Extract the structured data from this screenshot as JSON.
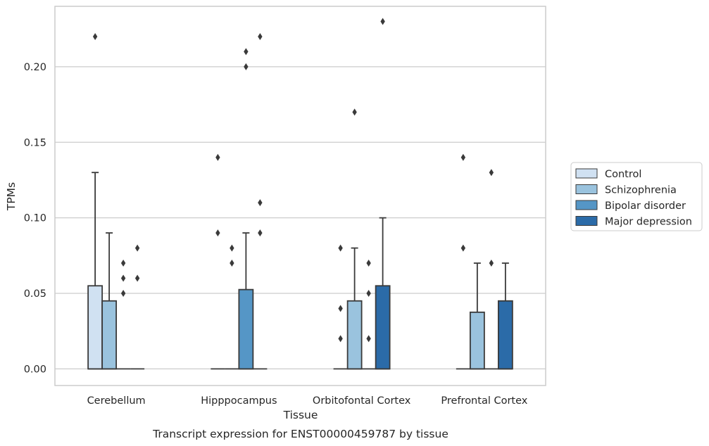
{
  "chart_data": {
    "type": "box",
    "caption": "Transcript expression for ENST00000459787 by tissue",
    "xlabel": "Tissue",
    "ylabel": "TPMs",
    "ylim": [
      -0.011,
      0.24
    ],
    "yticks": [
      0.0,
      0.05,
      0.1,
      0.15,
      0.2
    ],
    "ytick_labels": [
      "0.00",
      "0.05",
      "0.10",
      "0.15",
      "0.20"
    ],
    "grid": "horizontal",
    "legend_position": "right",
    "categories": [
      "Cerebellum",
      "Hipppocampus",
      "Orbitofontal Cortex",
      "Prefrontal Cortex"
    ],
    "series": [
      {
        "name": "Control",
        "color": "#d0e1f2",
        "boxes": [
          {
            "q1": 0.0,
            "median": 0.0,
            "q3": 0.055,
            "whisker_low": 0.0,
            "whisker_high": 0.13,
            "outliers": [
              0.22
            ]
          },
          {
            "q1": 0.0,
            "median": 0.0,
            "q3": 0.0,
            "whisker_low": 0.0,
            "whisker_high": 0.0,
            "outliers": [
              0.09,
              0.14
            ]
          },
          {
            "q1": 0.0,
            "median": 0.0,
            "q3": 0.0,
            "whisker_low": 0.0,
            "whisker_high": 0.0,
            "outliers": [
              0.02,
              0.04,
              0.08
            ]
          },
          {
            "q1": 0.0,
            "median": 0.0,
            "q3": 0.0,
            "whisker_low": 0.0,
            "whisker_high": 0.0,
            "outliers": [
              0.08,
              0.14
            ]
          }
        ]
      },
      {
        "name": "Schizophrenia",
        "color": "#9ac3de",
        "boxes": [
          {
            "q1": 0.0,
            "median": 0.0,
            "q3": 0.045,
            "whisker_low": 0.0,
            "whisker_high": 0.09,
            "outliers": []
          },
          {
            "q1": 0.0,
            "median": 0.0,
            "q3": 0.0,
            "whisker_low": 0.0,
            "whisker_high": 0.0,
            "outliers": [
              0.07,
              0.08
            ]
          },
          {
            "q1": 0.0,
            "median": 0.0,
            "q3": 0.045,
            "whisker_low": 0.0,
            "whisker_high": 0.08,
            "outliers": [
              0.17
            ]
          },
          {
            "q1": 0.0,
            "median": 0.0,
            "q3": 0.0375,
            "whisker_low": 0.0,
            "whisker_high": 0.07,
            "outliers": []
          }
        ]
      },
      {
        "name": "Bipolar disorder",
        "color": "#5596c6",
        "boxes": [
          {
            "q1": 0.0,
            "median": 0.0,
            "q3": 0.0,
            "whisker_low": 0.0,
            "whisker_high": 0.0,
            "outliers": [
              0.05,
              0.06,
              0.07
            ]
          },
          {
            "q1": 0.0,
            "median": 0.0,
            "q3": 0.0525,
            "whisker_low": 0.0,
            "whisker_high": 0.09,
            "outliers": [
              0.2,
              0.21
            ]
          },
          {
            "q1": 0.0,
            "median": 0.0,
            "q3": 0.0,
            "whisker_low": 0.0,
            "whisker_high": 0.0,
            "outliers": [
              0.02,
              0.05,
              0.07
            ]
          },
          {
            "q1": 0.0,
            "median": 0.0,
            "q3": 0.0,
            "whisker_low": 0.0,
            "whisker_high": 0.0,
            "outliers": [
              0.07,
              0.13
            ]
          }
        ]
      },
      {
        "name": "Major depression",
        "color": "#2b6ba8",
        "boxes": [
          {
            "q1": 0.0,
            "median": 0.0,
            "q3": 0.0,
            "whisker_low": 0.0,
            "whisker_high": 0.0,
            "outliers": [
              0.06,
              0.08
            ]
          },
          {
            "q1": 0.0,
            "median": 0.0,
            "q3": 0.0,
            "whisker_low": 0.0,
            "whisker_high": 0.0,
            "outliers": [
              0.09,
              0.11,
              0.22
            ]
          },
          {
            "q1": 0.0,
            "median": 0.0,
            "q3": 0.055,
            "whisker_low": 0.0,
            "whisker_high": 0.1,
            "outliers": [
              0.23
            ]
          },
          {
            "q1": 0.0,
            "median": 0.0,
            "q3": 0.045,
            "whisker_low": 0.0,
            "whisker_high": 0.07,
            "outliers": []
          }
        ]
      }
    ]
  }
}
